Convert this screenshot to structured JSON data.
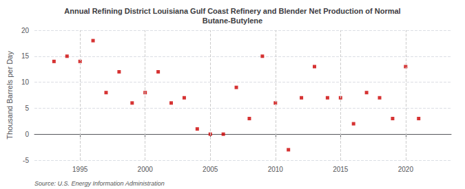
{
  "chart_data": {
    "type": "scatter",
    "title": "Annual Refining District Louisiana Gulf Coast Refinery and Blender Net Production of Normal\nButane-Butylene",
    "ylabel": "Thousand Barrels per Day",
    "annotations": [
      "Source: U.S. Energy Information Administration"
    ],
    "x": [
      1993,
      1994,
      1995,
      1996,
      1997,
      1998,
      1999,
      2000,
      2001,
      2002,
      2003,
      2004,
      2005,
      2006,
      2007,
      2008,
      2009,
      2010,
      2011,
      2012,
      2013,
      2014,
      2015,
      2016,
      2017,
      2018,
      2019,
      2020,
      2021
    ],
    "values": [
      14,
      15,
      14,
      18,
      8,
      12,
      6,
      8,
      12,
      6,
      7,
      1,
      0,
      0,
      9,
      3,
      15,
      6,
      -3,
      7,
      13,
      7,
      7,
      2,
      8,
      7,
      3,
      13,
      3
    ],
    "color": "#cc0000",
    "marker": "square",
    "xlim": [
      1991.5,
      2023.5
    ],
    "xticks": [
      1995,
      2000,
      2005,
      2010,
      2015,
      2020
    ],
    "ylim": [
      -5,
      20
    ],
    "yticks": [
      -5,
      0,
      5,
      10,
      15,
      20
    ],
    "grid": true
  }
}
